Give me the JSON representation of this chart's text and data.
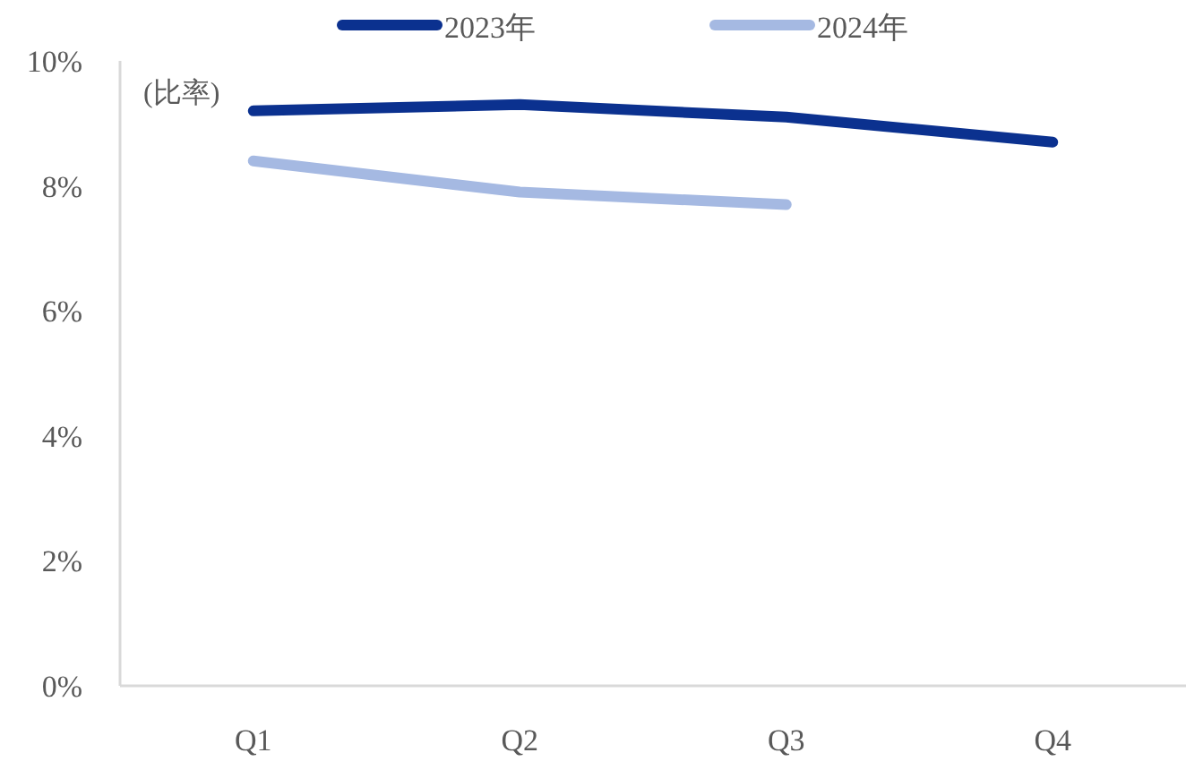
{
  "chart_data": {
    "type": "line",
    "ylabel": "(比率)",
    "categories": [
      "Q1",
      "Q2",
      "Q3",
      "Q4"
    ],
    "series": [
      {
        "name": "2023年",
        "color": "#0b318f",
        "values": [
          9.2,
          9.3,
          9.1,
          8.7
        ]
      },
      {
        "name": "2024年",
        "color": "#a5b9e2",
        "values": [
          8.4,
          7.9,
          7.7,
          null
        ]
      }
    ],
    "ylim": [
      0,
      10
    ],
    "yticks": [
      {
        "value": 0,
        "label": "0%"
      },
      {
        "value": 2,
        "label": "2%"
      },
      {
        "value": 4,
        "label": "4%"
      },
      {
        "value": 6,
        "label": "6%"
      },
      {
        "value": 8,
        "label": "8%"
      },
      {
        "value": 10,
        "label": "10%"
      }
    ],
    "grid": false,
    "legend": "top",
    "marker": "none",
    "line_style": "solid"
  }
}
